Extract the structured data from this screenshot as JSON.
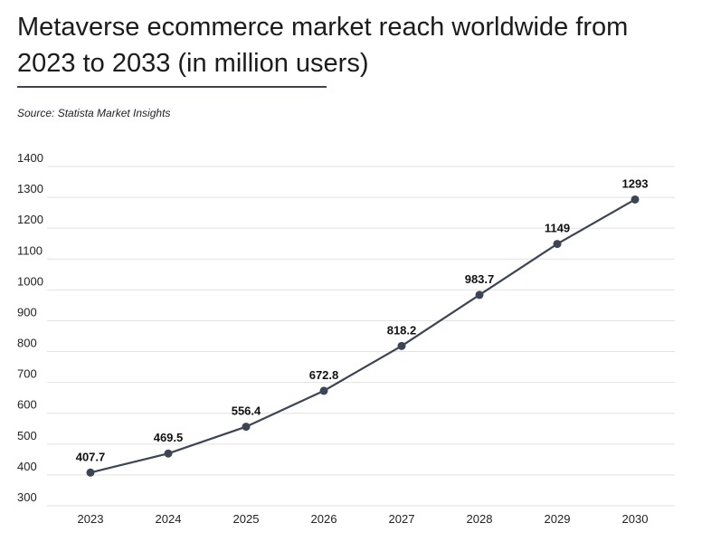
{
  "title": "Metaverse ecommerce market reach worldwide from 2023 to 2033 (in million users)",
  "source": "Source: Statista Market Insights",
  "colors": {
    "line": "#3d4555",
    "grid": "#e2e2e2",
    "rule": "#3d4350"
  },
  "chart_data": {
    "type": "line",
    "title": "Metaverse ecommerce market reach worldwide from 2023 to 2033 (in million users)",
    "xlabel": "",
    "ylabel": "",
    "categories": [
      "2023",
      "2024",
      "2025",
      "2026",
      "2027",
      "2028",
      "2029",
      "2030"
    ],
    "values": [
      407.7,
      469.5,
      556.4,
      672.8,
      818.2,
      983.7,
      1149,
      1293
    ],
    "value_labels": [
      "407.7",
      "469.5",
      "556.4",
      "672.8",
      "818.2",
      "983.7",
      "1149",
      "1293"
    ],
    "ylim": [
      300,
      1400
    ],
    "yticks": [
      1400,
      1300,
      1200,
      1100,
      1000,
      900,
      800,
      700,
      600,
      500,
      400,
      300
    ],
    "grid": true,
    "legend": "none"
  }
}
